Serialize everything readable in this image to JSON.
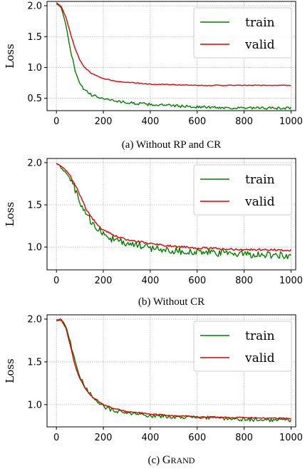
{
  "chart_data": [
    {
      "type": "line",
      "caption": "(a) Without RP and CR",
      "ylabel": "Loss",
      "xlim": [
        -40,
        1020
      ],
      "ylim": [
        0.3,
        2.07
      ],
      "xticks": [
        0,
        200,
        400,
        600,
        800,
        1000
      ],
      "xtick_labels": [
        "0",
        "200",
        "400",
        "600",
        "800",
        "1000"
      ],
      "yticks": [
        0.5,
        1.0,
        1.5,
        2.0
      ],
      "ytick_labels": [
        "0.5",
        "1.0",
        "1.5",
        "2.0"
      ],
      "grid": true,
      "legend_position": "top-right",
      "series": [
        {
          "name": "train",
          "color": "#008000",
          "x": [
            0,
            20,
            40,
            60,
            80,
            100,
            120,
            150,
            200,
            250,
            300,
            400,
            500,
            600,
            700,
            800,
            900,
            1000
          ],
          "y": [
            2.03,
            1.97,
            1.7,
            1.28,
            0.95,
            0.75,
            0.63,
            0.55,
            0.5,
            0.46,
            0.43,
            0.4,
            0.38,
            0.36,
            0.35,
            0.34,
            0.34,
            0.34
          ],
          "noise": 0.022
        },
        {
          "name": "valid",
          "color": "#e00000",
          "x": [
            0,
            20,
            40,
            60,
            80,
            100,
            120,
            150,
            200,
            250,
            300,
            400,
            500,
            600,
            700,
            800,
            900,
            1000
          ],
          "y": [
            2.05,
            1.99,
            1.82,
            1.55,
            1.3,
            1.12,
            1.0,
            0.9,
            0.82,
            0.78,
            0.76,
            0.73,
            0.72,
            0.71,
            0.71,
            0.71,
            0.71,
            0.71
          ],
          "noise": 0.006
        }
      ]
    },
    {
      "type": "line",
      "caption": "(b) Without CR",
      "ylabel": "Loss",
      "xlim": [
        -40,
        1020
      ],
      "ylim": [
        0.73,
        2.05
      ],
      "xticks": [
        0,
        200,
        400,
        600,
        800,
        1000
      ],
      "xtick_labels": [
        "0",
        "200",
        "400",
        "600",
        "800",
        "1000"
      ],
      "yticks": [
        1.0,
        1.5,
        2.0
      ],
      "ytick_labels": [
        "1.0",
        "1.5",
        "2.0"
      ],
      "grid": true,
      "legend_position": "top-right",
      "series": [
        {
          "name": "train",
          "color": "#008000",
          "x": [
            0,
            25,
            50,
            75,
            100,
            125,
            150,
            175,
            200,
            250,
            300,
            400,
            500,
            600,
            700,
            800,
            900,
            1000
          ],
          "y": [
            1.99,
            1.93,
            1.85,
            1.72,
            1.55,
            1.4,
            1.3,
            1.22,
            1.15,
            1.08,
            1.04,
            0.99,
            0.96,
            0.94,
            0.93,
            0.92,
            0.91,
            0.9
          ],
          "noise": 0.045
        },
        {
          "name": "valid",
          "color": "#e00000",
          "x": [
            0,
            25,
            50,
            75,
            100,
            125,
            150,
            175,
            200,
            250,
            300,
            400,
            500,
            600,
            700,
            800,
            900,
            1000
          ],
          "y": [
            1.99,
            1.95,
            1.88,
            1.77,
            1.62,
            1.46,
            1.35,
            1.27,
            1.2,
            1.13,
            1.09,
            1.04,
            1.01,
            0.99,
            0.98,
            0.97,
            0.97,
            0.96
          ],
          "noise": 0.012
        }
      ]
    },
    {
      "type": "line",
      "caption": "(c) GRAND",
      "caption_prefix": "(c) ",
      "caption_name": "Grand",
      "ylabel": "Loss",
      "xlim": [
        -40,
        1020
      ],
      "ylim": [
        0.74,
        2.05
      ],
      "xticks": [
        0,
        200,
        400,
        600,
        800,
        1000
      ],
      "xtick_labels": [
        "0",
        "200",
        "400",
        "600",
        "800",
        "1000"
      ],
      "yticks": [
        1.0,
        1.5,
        2.0
      ],
      "ytick_labels": [
        "1.0",
        "1.5",
        "2.0"
      ],
      "grid": true,
      "legend_position": "top-right",
      "series": [
        {
          "name": "train",
          "color": "#008000",
          "x": [
            0,
            20,
            40,
            60,
            80,
            100,
            125,
            150,
            200,
            250,
            300,
            400,
            500,
            600,
            700,
            800,
            900,
            1000
          ],
          "y": [
            1.99,
            2.0,
            1.92,
            1.72,
            1.5,
            1.33,
            1.2,
            1.1,
            0.98,
            0.92,
            0.9,
            0.87,
            0.86,
            0.85,
            0.84,
            0.83,
            0.82,
            0.82
          ],
          "noise": 0.022
        },
        {
          "name": "valid",
          "color": "#e00000",
          "x": [
            0,
            20,
            40,
            60,
            80,
            100,
            125,
            150,
            200,
            250,
            300,
            400,
            500,
            600,
            700,
            800,
            900,
            1000
          ],
          "y": [
            1.98,
            1.99,
            1.9,
            1.68,
            1.45,
            1.3,
            1.18,
            1.1,
            1.0,
            0.95,
            0.92,
            0.89,
            0.87,
            0.86,
            0.85,
            0.85,
            0.84,
            0.84
          ],
          "noise": 0.007
        }
      ]
    }
  ]
}
